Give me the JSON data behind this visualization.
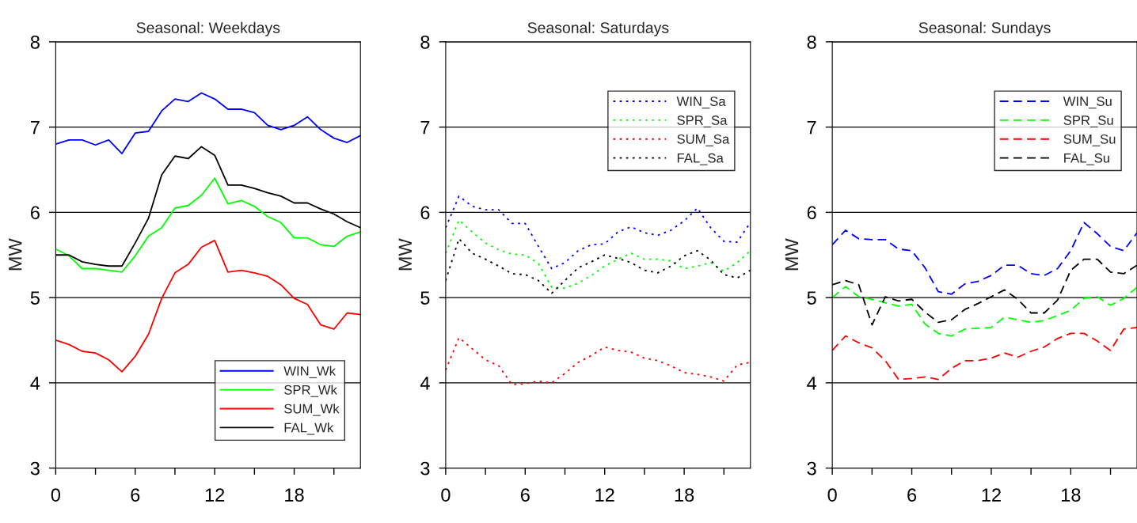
{
  "chart_data": [
    {
      "type": "line",
      "title": "Seasonal: Weekdays",
      "ylabel": "MW",
      "x": [
        0,
        1,
        2,
        3,
        4,
        5,
        6,
        7,
        8,
        9,
        10,
        11,
        12,
        13,
        14,
        15,
        16,
        17,
        18,
        19,
        20,
        21,
        22,
        23
      ],
      "xlim": [
        0,
        23
      ],
      "ylim": [
        3,
        8
      ],
      "xticks": [
        0,
        {
          "value": 3,
          "label": null
        },
        6,
        {
          "value": 9,
          "label": null
        },
        12,
        {
          "value": 15,
          "label": null
        },
        18,
        {
          "value": 21,
          "label": null
        }
      ],
      "yticks": [
        3,
        4,
        5,
        6,
        7,
        8
      ],
      "grid": "y",
      "legend": "bottom right",
      "line_style": "solid",
      "marker": "none",
      "series": [
        {
          "name": "WIN_Wk",
          "color": "#0000ff",
          "values": [
            6.8,
            6.85,
            6.85,
            6.79,
            6.85,
            6.69,
            6.93,
            6.95,
            7.19,
            7.33,
            7.3,
            7.4,
            7.33,
            7.21,
            7.21,
            7.17,
            7.02,
            6.97,
            7.02,
            7.12,
            6.97,
            6.87,
            6.82,
            6.9
          ]
        },
        {
          "name": "SPR_Wk",
          "color": "#00ff00",
          "values": [
            5.57,
            5.49,
            5.34,
            5.34,
            5.32,
            5.3,
            5.49,
            5.72,
            5.82,
            6.05,
            6.08,
            6.2,
            6.4,
            6.1,
            6.14,
            6.07,
            5.95,
            5.88,
            5.7,
            5.7,
            5.62,
            5.6,
            5.72,
            5.77
          ]
        },
        {
          "name": "SUM_Wk",
          "color": "#ff0000",
          "values": [
            4.5,
            4.45,
            4.37,
            4.35,
            4.27,
            4.13,
            4.31,
            4.57,
            4.99,
            5.29,
            5.39,
            5.59,
            5.67,
            5.3,
            5.32,
            5.29,
            5.25,
            5.15,
            4.99,
            4.92,
            4.68,
            4.63,
            4.82,
            4.8
          ]
        },
        {
          "name": "FAL_Wk",
          "color": "#000000",
          "values": [
            5.5,
            5.5,
            5.42,
            5.39,
            5.37,
            5.37,
            5.64,
            5.93,
            6.44,
            6.66,
            6.63,
            6.77,
            6.67,
            6.32,
            6.32,
            6.28,
            6.23,
            6.19,
            6.11,
            6.11,
            6.04,
            5.98,
            5.89,
            5.82
          ]
        }
      ]
    },
    {
      "type": "line",
      "title": "Seasonal: Saturdays",
      "ylabel": "MW",
      "x": [
        0,
        1,
        2,
        3,
        4,
        5,
        6,
        7,
        8,
        9,
        10,
        11,
        12,
        13,
        14,
        15,
        16,
        17,
        18,
        19,
        20,
        21,
        22,
        23
      ],
      "xlim": [
        0,
        23
      ],
      "ylim": [
        3,
        8
      ],
      "xticks": [
        0,
        {
          "value": 3,
          "label": null
        },
        6,
        {
          "value": 9,
          "label": null
        },
        12,
        {
          "value": 15,
          "label": null
        },
        18,
        {
          "value": 21,
          "label": null
        }
      ],
      "yticks": [
        3,
        4,
        5,
        6,
        7,
        8
      ],
      "grid": "y",
      "legend": "top right",
      "line_style": "dotted",
      "marker": "none",
      "series": [
        {
          "name": "WIN_Sa",
          "color": "#0000ff",
          "values": [
            5.82,
            6.19,
            6.07,
            6.03,
            6.03,
            5.87,
            5.87,
            5.6,
            5.34,
            5.41,
            5.55,
            5.62,
            5.63,
            5.77,
            5.83,
            5.76,
            5.73,
            5.79,
            5.9,
            6.05,
            5.82,
            5.66,
            5.65,
            5.88
          ]
        },
        {
          "name": "SPR_Sa",
          "color": "#00ff00",
          "values": [
            5.52,
            5.91,
            5.77,
            5.64,
            5.56,
            5.51,
            5.5,
            5.4,
            5.12,
            5.11,
            5.17,
            5.26,
            5.37,
            5.45,
            5.52,
            5.45,
            5.45,
            5.43,
            5.34,
            5.37,
            5.41,
            5.31,
            5.41,
            5.55
          ]
        },
        {
          "name": "SUM_Sa",
          "color": "#ff0000",
          "values": [
            4.15,
            4.53,
            4.4,
            4.27,
            4.2,
            3.98,
            3.99,
            4.02,
            4.0,
            4.11,
            4.24,
            4.32,
            4.42,
            4.38,
            4.36,
            4.29,
            4.26,
            4.2,
            4.12,
            4.1,
            4.07,
            4.02,
            4.21,
            4.24
          ]
        },
        {
          "name": "FAL_Sa",
          "color": "#000000",
          "values": [
            5.2,
            5.69,
            5.52,
            5.45,
            5.37,
            5.28,
            5.27,
            5.2,
            5.05,
            5.2,
            5.35,
            5.42,
            5.5,
            5.46,
            5.41,
            5.32,
            5.29,
            5.37,
            5.49,
            5.55,
            5.44,
            5.27,
            5.23,
            5.32
          ]
        }
      ]
    },
    {
      "type": "line",
      "title": "Seasonal: Sundays",
      "ylabel": "MW",
      "x": [
        0,
        1,
        2,
        3,
        4,
        5,
        6,
        7,
        8,
        9,
        10,
        11,
        12,
        13,
        14,
        15,
        16,
        17,
        18,
        19,
        20,
        21,
        22,
        23
      ],
      "xlim": [
        0,
        23
      ],
      "ylim": [
        3,
        8
      ],
      "xticks": [
        0,
        {
          "value": 3,
          "label": null
        },
        6,
        {
          "value": 9,
          "label": null
        },
        12,
        {
          "value": 15,
          "label": null
        },
        18,
        {
          "value": 21,
          "label": null
        }
      ],
      "yticks": [
        3,
        4,
        5,
        6,
        7,
        8
      ],
      "grid": "y",
      "legend": "top right",
      "line_style": "dashed",
      "marker": "none",
      "series": [
        {
          "name": "WIN_Su",
          "color": "#0000ff",
          "values": [
            5.62,
            5.79,
            5.69,
            5.68,
            5.68,
            5.57,
            5.55,
            5.35,
            5.07,
            5.04,
            5.16,
            5.19,
            5.26,
            5.38,
            5.38,
            5.28,
            5.26,
            5.34,
            5.55,
            5.88,
            5.75,
            5.6,
            5.55,
            5.76
          ]
        },
        {
          "name": "SPR_Su",
          "color": "#00ff00",
          "values": [
            5.0,
            5.13,
            5.01,
            4.98,
            4.94,
            4.9,
            4.92,
            4.69,
            4.58,
            4.55,
            4.63,
            4.64,
            4.65,
            4.77,
            4.74,
            4.71,
            4.73,
            4.79,
            4.85,
            4.99,
            5.01,
            4.91,
            4.99,
            5.12
          ]
        },
        {
          "name": "SUM_Su",
          "color": "#ff0000",
          "values": [
            4.38,
            4.55,
            4.47,
            4.41,
            4.26,
            4.04,
            4.05,
            4.07,
            4.04,
            4.17,
            4.26,
            4.26,
            4.29,
            4.35,
            4.3,
            4.37,
            4.42,
            4.52,
            4.58,
            4.58,
            4.49,
            4.38,
            4.63,
            4.65
          ]
        },
        {
          "name": "FAL_Su",
          "color": "#000000",
          "values": [
            5.15,
            5.2,
            5.15,
            4.68,
            5.01,
            4.96,
            4.98,
            4.83,
            4.71,
            4.74,
            4.86,
            4.93,
            5.01,
            5.09,
            4.98,
            4.82,
            4.82,
            4.97,
            5.32,
            5.45,
            5.45,
            5.3,
            5.28,
            5.38
          ]
        }
      ]
    }
  ]
}
